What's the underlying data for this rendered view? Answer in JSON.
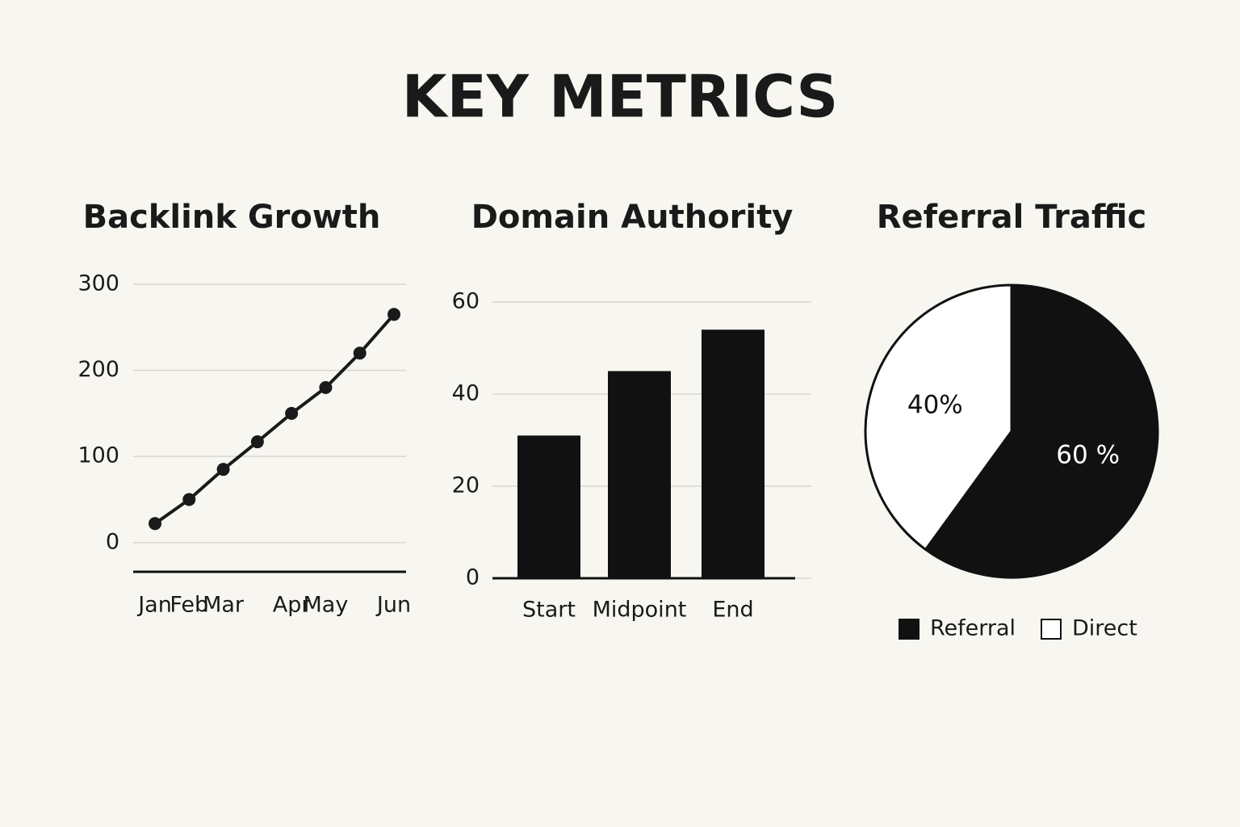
{
  "title": "KEY METRICS",
  "chart_data": [
    {
      "type": "line",
      "title": "Backlink Growth",
      "categories": [
        "Jan",
        "Feb",
        "Mar",
        null,
        "Apr",
        "May",
        null,
        "Jun"
      ],
      "values": [
        22,
        50,
        85,
        117,
        150,
        180,
        220,
        265
      ],
      "color": "#1a1a1a",
      "ylim": [
        -34,
        300
      ],
      "yticks": [
        0,
        100,
        200,
        300
      ],
      "grid": true
    },
    {
      "type": "bar",
      "title": "Domain Authority",
      "categories": [
        "Start",
        "Midpoint",
        "End"
      ],
      "values": [
        31,
        45,
        54
      ],
      "color": "#111111",
      "ylim": [
        0,
        60
      ],
      "yticks": [
        0,
        20,
        40,
        60
      ],
      "grid": true
    },
    {
      "type": "pie",
      "title": "Referral Traffic",
      "categories": [
        "Referral",
        "Direct"
      ],
      "values": [
        60,
        40
      ],
      "value_labels": [
        "60 %",
        "40%"
      ],
      "colors": [
        "#111111",
        "#ffffff"
      ],
      "legend": "bottom"
    }
  ]
}
